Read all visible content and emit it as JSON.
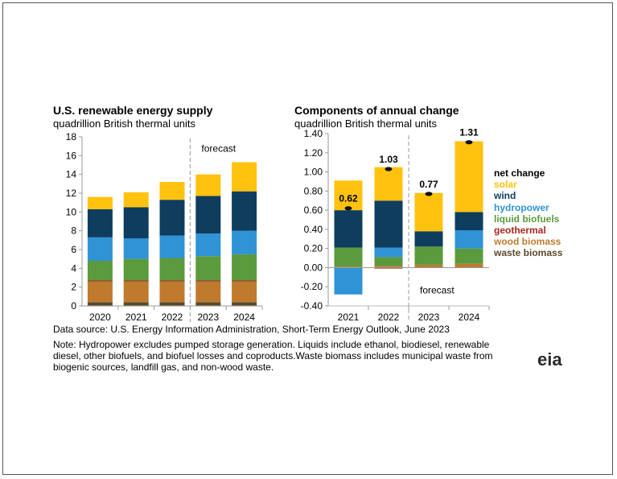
{
  "left_title": "U.S. renewable energy supply",
  "left_subtitle": "quadrillion British thermal units",
  "right_title": "Components of annual change",
  "right_subtitle": "quadrillion British thermal units",
  "source": "Data source: U.S. Energy Information Administration, Short-Term Energy Outlook, June 2023",
  "note": "Note: Hydropower excludes pumped storage generation. Liquids include ethanol, biodiesel, renewable diesel, other biofuels, and biofuel losses and coproducts.Waste biomass includes municipal waste from biogenic sources, landfill gas, and non-wood waste.",
  "logo_text": "eia",
  "legend": [
    {
      "label": "net change",
      "color": "#000000"
    },
    {
      "label": "solar",
      "color": "#ffc20e"
    },
    {
      "label": "wind",
      "color": "#0e3d5e"
    },
    {
      "label": "hydropower",
      "color": "#2f93d6"
    },
    {
      "label": "liquid biofuels",
      "color": "#5b9a3d"
    },
    {
      "label": "geothermal",
      "color": "#a8281f"
    },
    {
      "label": "wood biomass",
      "color": "#c07a2e"
    },
    {
      "label": "waste biomass",
      "color": "#5a4a2a"
    }
  ],
  "chart_data": [
    {
      "type": "bar",
      "stacked": true,
      "title": "U.S. renewable energy supply",
      "subtitle": "quadrillion British thermal units",
      "categories": [
        "2020",
        "2021",
        "2022",
        "2023",
        "2024"
      ],
      "ylim": [
        0,
        18
      ],
      "yticks": [
        "0",
        "2",
        "4",
        "6",
        "8",
        "10",
        "12",
        "14",
        "16",
        "18"
      ],
      "annotation": "forecast",
      "series": [
        {
          "name": "waste biomass",
          "color": "#5a4a2a",
          "values": [
            0.4,
            0.4,
            0.4,
            0.4,
            0.4
          ]
        },
        {
          "name": "wood biomass",
          "color": "#c07a2e",
          "values": [
            2.2,
            2.2,
            2.2,
            2.2,
            2.2
          ]
        },
        {
          "name": "geothermal",
          "color": "#a8281f",
          "values": [
            0.1,
            0.1,
            0.1,
            0.1,
            0.1
          ]
        },
        {
          "name": "liquid biofuels",
          "color": "#5b9a3d",
          "values": [
            2.1,
            2.3,
            2.4,
            2.6,
            2.8
          ]
        },
        {
          "name": "hydropower",
          "color": "#2f93d6",
          "values": [
            2.5,
            2.2,
            2.4,
            2.4,
            2.5
          ]
        },
        {
          "name": "wind",
          "color": "#0e3d5e",
          "values": [
            3.0,
            3.3,
            3.8,
            4.0,
            4.2
          ]
        },
        {
          "name": "solar",
          "color": "#ffc20e",
          "values": [
            1.3,
            1.6,
            1.9,
            2.3,
            3.1
          ]
        }
      ]
    },
    {
      "type": "bar",
      "stacked": true,
      "title": "Components of annual change",
      "subtitle": "quadrillion British thermal units",
      "categories": [
        "2021",
        "2022",
        "2023",
        "2024"
      ],
      "ylim": [
        -0.4,
        1.4
      ],
      "yticks": [
        "-0.40",
        "-0.20",
        "0.00",
        "0.20",
        "0.40",
        "0.60",
        "0.80",
        "1.00",
        "1.20",
        "1.40"
      ],
      "annotation": "forecast",
      "series": [
        {
          "name": "waste biomass",
          "color": "#5a4a2a",
          "values": [
            0.0,
            -0.01,
            0.0,
            0.0
          ]
        },
        {
          "name": "wood biomass",
          "color": "#c07a2e",
          "values": [
            0.01,
            0.02,
            0.03,
            0.04
          ]
        },
        {
          "name": "geothermal",
          "color": "#a8281f",
          "values": [
            0.0,
            0.0,
            0.0,
            0.0
          ]
        },
        {
          "name": "liquid biofuels",
          "color": "#5b9a3d",
          "values": [
            0.2,
            0.09,
            0.19,
            0.16
          ]
        },
        {
          "name": "hydropower",
          "color": "#2f93d6",
          "values": [
            -0.28,
            0.1,
            0.0,
            0.19
          ]
        },
        {
          "name": "wind",
          "color": "#0e3d5e",
          "values": [
            0.39,
            0.49,
            0.16,
            0.19
          ]
        },
        {
          "name": "solar",
          "color": "#ffc20e",
          "values": [
            0.31,
            0.35,
            0.4,
            0.74
          ]
        }
      ],
      "net_change": [
        0.62,
        1.03,
        0.77,
        1.31
      ],
      "net_change_labels": [
        "0.62",
        "1.03",
        "0.77",
        "1.31"
      ]
    }
  ]
}
